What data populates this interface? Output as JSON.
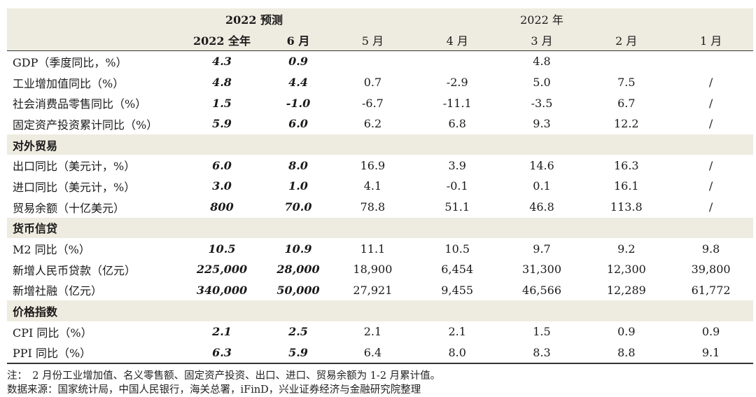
{
  "header": {
    "group_pred": "2022 预测",
    "group_actual": "2022 年",
    "columns": [
      "2022 全年",
      "6 月",
      "5 月",
      "4 月",
      "3 月",
      "2 月",
      "1 月"
    ]
  },
  "sections": [
    {
      "title": "",
      "rows": [
        {
          "label": "GDP（季度同比，%）",
          "values": [
            "4.3",
            "0.9",
            "",
            "",
            "4.8",
            "",
            ""
          ]
        },
        {
          "label": "工业增加值同比（%）",
          "values": [
            "4.8",
            "4.4",
            "0.7",
            "-2.9",
            "5.0",
            "7.5",
            "/"
          ]
        },
        {
          "label": "社会消费品零售同比（%）",
          "values": [
            "1.5",
            "-1.0",
            "-6.7",
            "-11.1",
            "-3.5",
            "6.7",
            "/"
          ]
        },
        {
          "label": "固定资产投资累计同比（%）",
          "values": [
            "5.9",
            "6.0",
            "6.2",
            "6.8",
            "9.3",
            "12.2",
            "/"
          ]
        }
      ]
    },
    {
      "title": "对外贸易",
      "rows": [
        {
          "label": "出口同比（美元计，%）",
          "values": [
            "6.0",
            "8.0",
            "16.9",
            "3.9",
            "14.6",
            "16.3",
            "/"
          ]
        },
        {
          "label": "进口同比（美元计，%）",
          "values": [
            "3.0",
            "1.0",
            "4.1",
            "-0.1",
            "0.1",
            "16.1",
            "/"
          ]
        },
        {
          "label": "贸易余额（十亿美元）",
          "values": [
            "800",
            "70.0",
            "78.8",
            "51.1",
            "46.8",
            "113.8",
            "/"
          ]
        }
      ]
    },
    {
      "title": "货币信贷",
      "rows": [
        {
          "label": "M2 同比（%）",
          "values": [
            "10.5",
            "10.9",
            "11.1",
            "10.5",
            "9.7",
            "9.2",
            "9.8"
          ]
        },
        {
          "label": "新增人民币贷款（亿元）",
          "values": [
            "225,000",
            "28,000",
            "18,900",
            "6,454",
            "31,300",
            "12,300",
            "39,800"
          ]
        },
        {
          "label": "新增社融（亿元）",
          "values": [
            "340,000",
            "50,000",
            "27,921",
            "9,455",
            "46,566",
            "12,289",
            "61,772"
          ]
        }
      ]
    },
    {
      "title": "价格指数",
      "rows": [
        {
          "label": "CPI 同比（%）",
          "values": [
            "2.1",
            "2.5",
            "2.1",
            "2.1",
            "1.5",
            "0.9",
            "0.9"
          ]
        },
        {
          "label": "PPI 同比（%）",
          "values": [
            "6.3",
            "5.9",
            "6.4",
            "8.0",
            "8.3",
            "8.8",
            "9.1"
          ]
        }
      ]
    }
  ],
  "notes": {
    "note": "注：　2 月份工业增加值、名义零售额、固定资产投资、出口、进口、贸易余额为 1-2 月累计值。",
    "source": "数据来源：国家统计局，中国人民银行，海关总署，iFinD，兴业证券经济与金融研究院整理"
  }
}
